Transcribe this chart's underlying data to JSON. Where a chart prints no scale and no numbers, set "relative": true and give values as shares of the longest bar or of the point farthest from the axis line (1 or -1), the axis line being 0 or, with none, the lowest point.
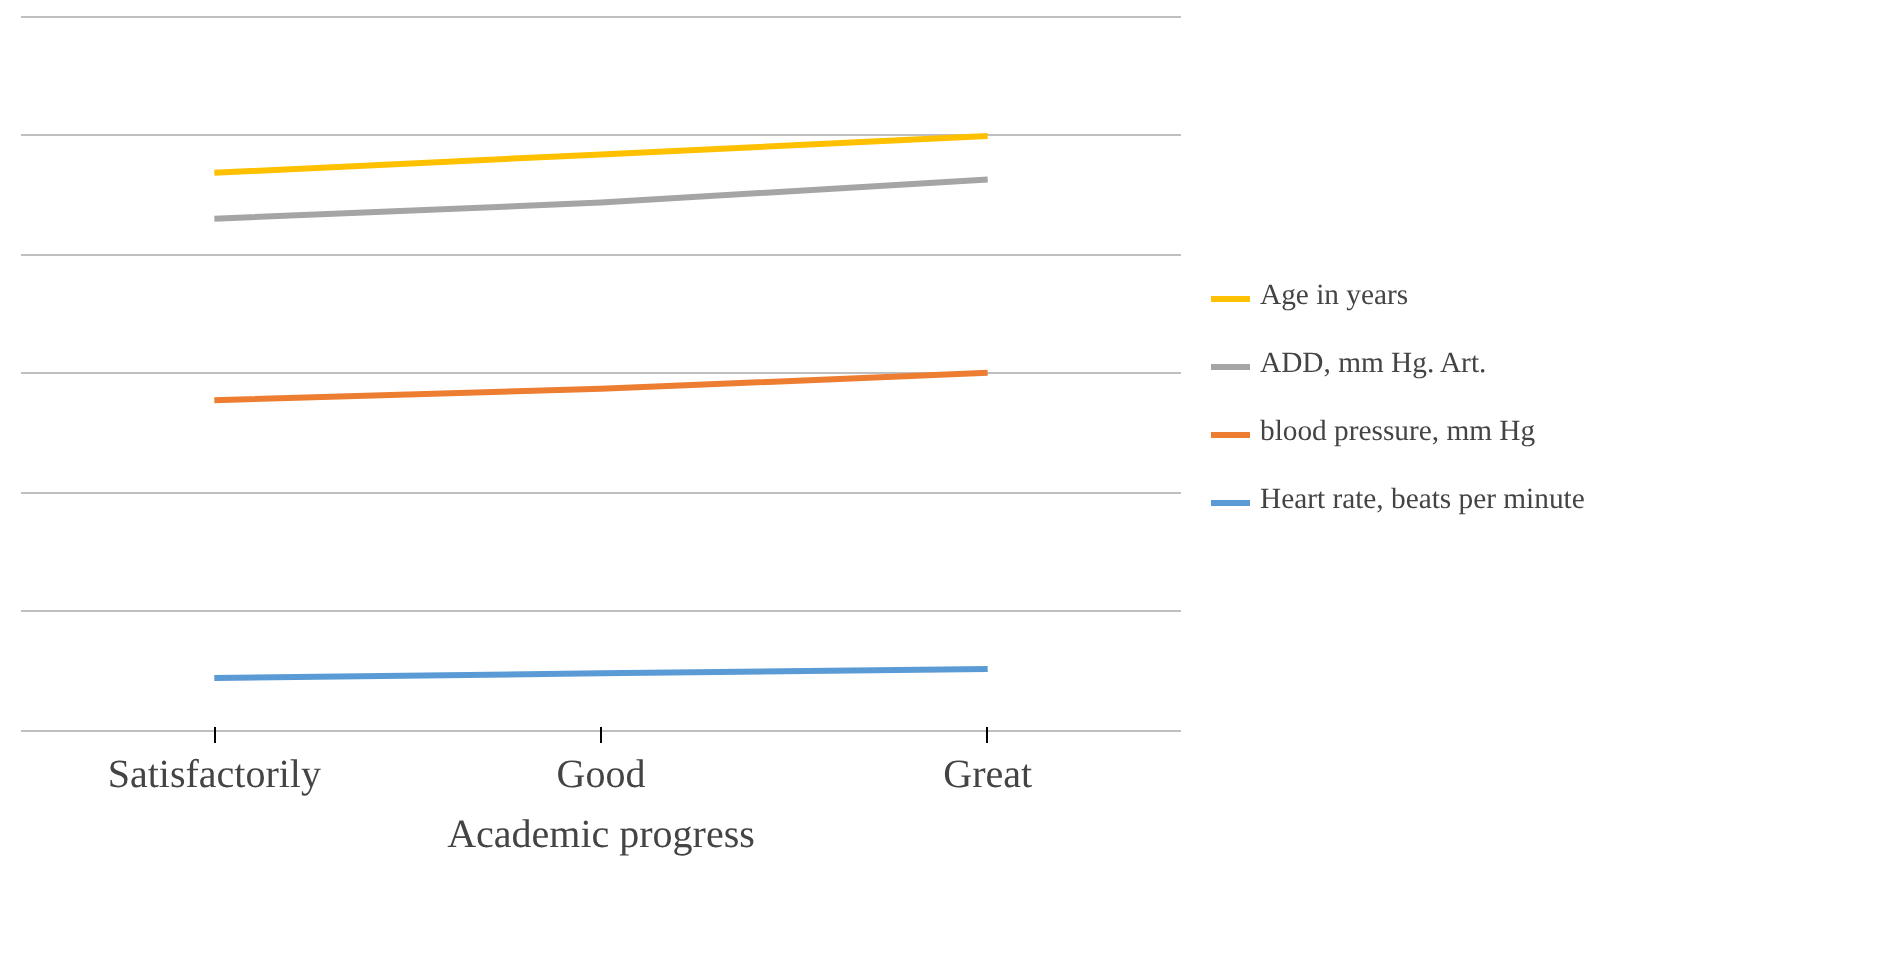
{
  "chart_data": {
    "type": "line",
    "relative": true,
    "xlabel": "Academic progress",
    "categories": [
      "Satisfactorily",
      "Good",
      "Great"
    ],
    "series": [
      {
        "name": "Age in years",
        "color": "#ffc000",
        "values": [
          0.938,
          0.969,
          1.0
        ]
      },
      {
        "name": "ADD, mm Hg. Art.",
        "color": "#a5a5a5",
        "values": [
          0.861,
          0.888,
          0.927
        ]
      },
      {
        "name": "blood pressure, mm Hg",
        "color": "#ed7d31",
        "values": [
          0.556,
          0.575,
          0.602
        ]
      },
      {
        "name": "Heart rate, beats per minute",
        "color": "#5b9bd5",
        "values": [
          0.089,
          0.097,
          0.104
        ]
      }
    ],
    "grid": "y",
    "legend": "right"
  }
}
